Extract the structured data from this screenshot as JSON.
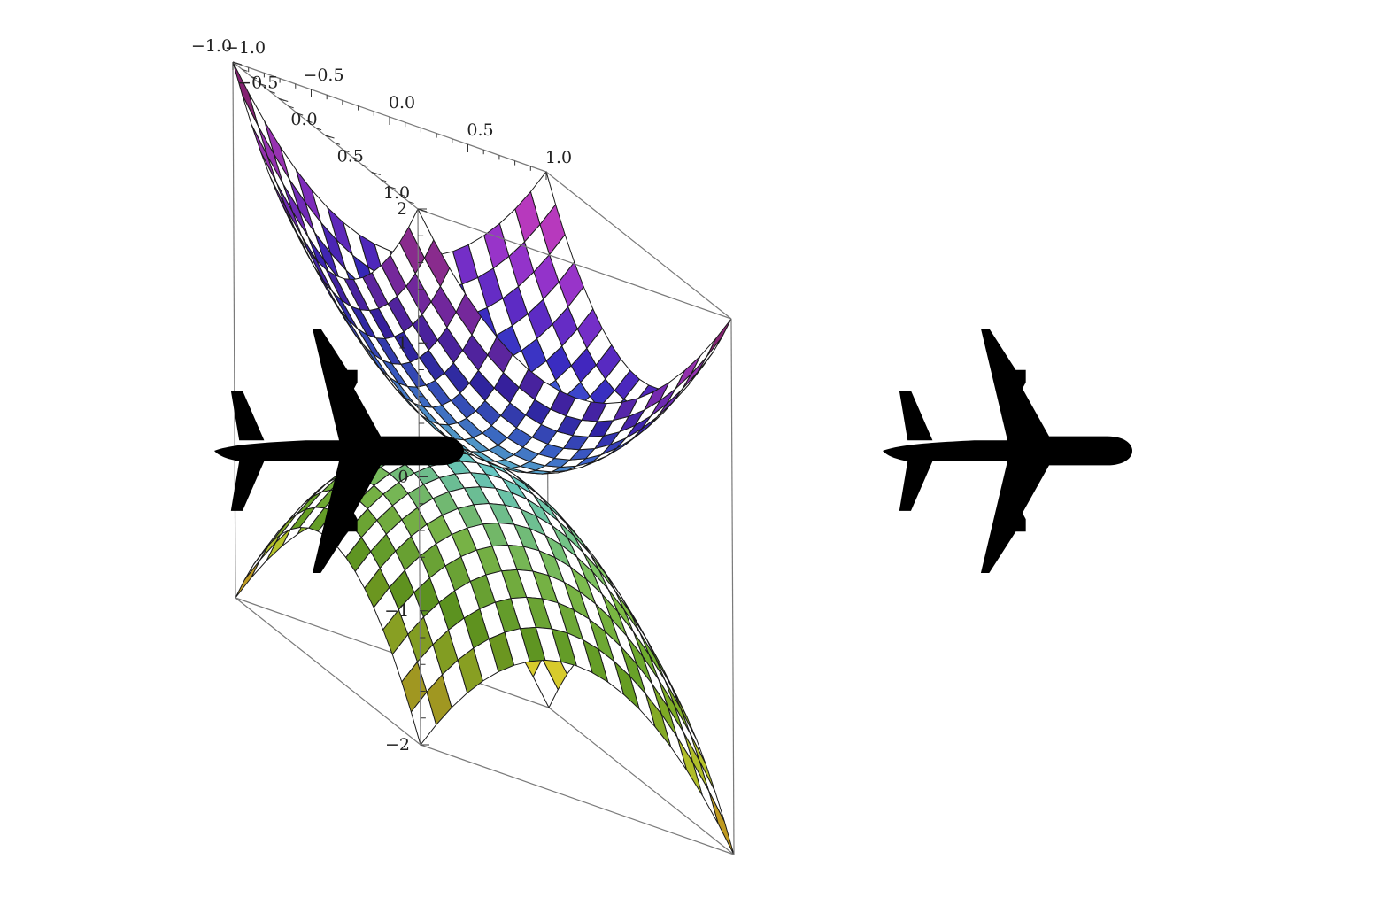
{
  "chart_data": {
    "type": "surface3d",
    "title": "",
    "surfaces": [
      {
        "name": "",
        "formula": "z = x^2 + y^2",
        "coloring": "checkerboard",
        "palette": "violet-blue-magenta"
      },
      {
        "name": "",
        "formula": "z = -(x^2 + y^2)",
        "coloring": "checkerboard",
        "palette": "green-yellow-orange"
      }
    ],
    "x_range": [
      -1,
      1
    ],
    "y_range": [
      -1,
      1
    ],
    "z_range": [
      -2,
      2
    ],
    "x_ticks": [
      "−1.0",
      "−0.5",
      "0.0",
      "0.5",
      "1.0"
    ],
    "y_ticks": [
      "−1.0",
      "−0.5",
      "0.0",
      "0.5",
      "1.0"
    ],
    "z_ticks": [
      "−2",
      "−1",
      "0",
      "1",
      "2"
    ],
    "grid": false,
    "box": true,
    "grid_cells": 20
  },
  "decorations": {
    "left_icon": "airplane-icon",
    "right_icon": "airplane-icon",
    "icon_color": "#000000"
  }
}
